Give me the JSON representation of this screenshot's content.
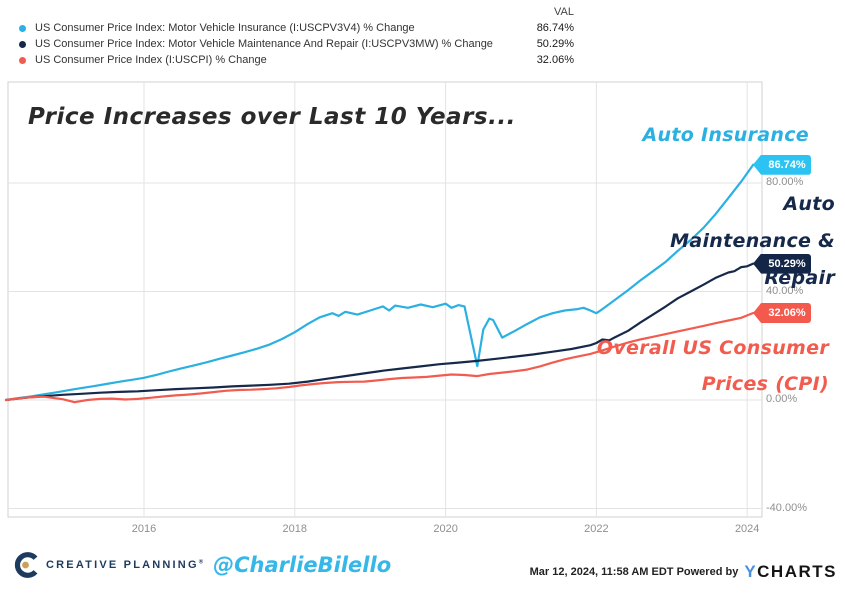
{
  "legend": {
    "val_header": "VAL",
    "rows": [
      {
        "label": "US Consumer Price Index: Motor Vehicle Insurance (I:USCPV3V4) % Change",
        "value": "86.74%",
        "color": "#2bb0e2"
      },
      {
        "label": "US Consumer Price Index: Motor Vehicle Maintenance And Repair (I:USCPV3MW) % Change",
        "value": "50.29%",
        "color": "#16294a"
      },
      {
        "label": "US Consumer Price Index (I:USCPI) % Change",
        "value": "32.06%",
        "color": "#f25c4f"
      }
    ]
  },
  "title": "Price Increases over Last 10 Years...",
  "annotations": {
    "insurance": {
      "text": "Auto Insurance",
      "color": "#2bb0e2"
    },
    "maintenance": {
      "lines": [
        "Auto",
        "Maintenance &",
        "Repair"
      ],
      "color": "#16294a"
    },
    "cpi": {
      "lines": [
        "Overall US Consumer",
        "Prices (CPI)"
      ],
      "color": "#f25c4f"
    }
  },
  "footer": {
    "brand": "CREATIVE PLANNING",
    "brand_reg": "®",
    "handle": "@CharlieBilello",
    "timestamp": "Mar 12, 2024, 11:58 AM EDT",
    "powered_by": " Powered by",
    "ycharts_y": "Y",
    "ycharts_rest": "CHARTS"
  },
  "chart_data": {
    "type": "line",
    "title": "Price Increases over Last 10 Years...",
    "x_axis": {
      "ticks": [
        {
          "label": "2016",
          "value": 2016
        },
        {
          "label": "2018",
          "value": 2018
        },
        {
          "label": "2020",
          "value": 2020
        },
        {
          "label": "2022",
          "value": 2022
        },
        {
          "label": "2024",
          "value": 2024
        }
      ],
      "range": [
        2014.17,
        2024.2
      ]
    },
    "y_axis": {
      "unit": "%",
      "ticks": [
        {
          "label": "80.00%",
          "value": 80
        },
        {
          "label": "40.00%",
          "value": 40
        },
        {
          "label": "0.00%",
          "value": 0
        },
        {
          "label": "-40.00%",
          "value": -40
        }
      ],
      "range": [
        -41.5,
        117.5
      ]
    },
    "grid": true,
    "legend_position": "top-left",
    "series": [
      {
        "name": "US Consumer Price Index: Motor Vehicle Insurance (I:USCPV3V4) % Change",
        "short_name": "Auto Insurance",
        "final_value_label": "86.74%",
        "color": "#2bb0e2",
        "badge_color": "#2cc2f1",
        "points": [
          [
            2014.17,
            0
          ],
          [
            2014.33,
            0.7
          ],
          [
            2014.5,
            1.3
          ],
          [
            2014.67,
            2.1
          ],
          [
            2014.83,
            2.8
          ],
          [
            2015.0,
            3.6
          ],
          [
            2015.17,
            4.4
          ],
          [
            2015.33,
            5.1
          ],
          [
            2015.5,
            5.9
          ],
          [
            2015.67,
            6.7
          ],
          [
            2015.83,
            7.4
          ],
          [
            2016.0,
            8.2
          ],
          [
            2016.17,
            9.3
          ],
          [
            2016.33,
            10.5
          ],
          [
            2016.5,
            11.7
          ],
          [
            2016.67,
            12.8
          ],
          [
            2016.83,
            13.9
          ],
          [
            2017.0,
            15.2
          ],
          [
            2017.17,
            16.4
          ],
          [
            2017.33,
            17.6
          ],
          [
            2017.5,
            18.9
          ],
          [
            2017.67,
            20.5
          ],
          [
            2017.83,
            22.5
          ],
          [
            2018.0,
            25.0
          ],
          [
            2018.17,
            28.0
          ],
          [
            2018.33,
            30.5
          ],
          [
            2018.5,
            32.0
          ],
          [
            2018.58,
            31.0
          ],
          [
            2018.67,
            32.5
          ],
          [
            2018.83,
            31.5
          ],
          [
            2019.0,
            33.0
          ],
          [
            2019.17,
            34.5
          ],
          [
            2019.25,
            33.0
          ],
          [
            2019.33,
            34.8
          ],
          [
            2019.5,
            34.0
          ],
          [
            2019.67,
            35.2
          ],
          [
            2019.83,
            34.2
          ],
          [
            2020.0,
            35.5
          ],
          [
            2020.08,
            34.0
          ],
          [
            2020.17,
            35.0
          ],
          [
            2020.25,
            34.5
          ],
          [
            2020.42,
            12.5
          ],
          [
            2020.5,
            26.0
          ],
          [
            2020.58,
            30.0
          ],
          [
            2020.63,
            29.5
          ],
          [
            2020.75,
            23.0
          ],
          [
            2020.92,
            25.5
          ],
          [
            2021.08,
            28.0
          ],
          [
            2021.25,
            30.5
          ],
          [
            2021.42,
            32.0
          ],
          [
            2021.58,
            33.0
          ],
          [
            2021.75,
            33.5
          ],
          [
            2021.83,
            34.0
          ],
          [
            2021.92,
            33.0
          ],
          [
            2022.0,
            32.0
          ],
          [
            2022.08,
            33.5
          ],
          [
            2022.25,
            37.0
          ],
          [
            2022.42,
            40.5
          ],
          [
            2022.58,
            44.0
          ],
          [
            2022.75,
            47.5
          ],
          [
            2022.92,
            51.0
          ],
          [
            2023.08,
            55.0
          ],
          [
            2023.25,
            59.0
          ],
          [
            2023.42,
            63.5
          ],
          [
            2023.58,
            68.5
          ],
          [
            2023.75,
            74.5
          ],
          [
            2023.92,
            80.5
          ],
          [
            2024.08,
            86.74
          ]
        ]
      },
      {
        "name": "US Consumer Price Index: Motor Vehicle Maintenance And Repair (I:USCPV3MW) % Change",
        "short_name": "Auto Maintenance & Repair",
        "final_value_label": "50.29%",
        "color": "#16294a",
        "badge_color": "#132647",
        "points": [
          [
            2014.17,
            0
          ],
          [
            2014.42,
            0.8
          ],
          [
            2014.67,
            1.4
          ],
          [
            2014.92,
            1.9
          ],
          [
            2015.17,
            2.3
          ],
          [
            2015.42,
            2.7
          ],
          [
            2015.67,
            3.0
          ],
          [
            2015.92,
            3.2
          ],
          [
            2016.17,
            3.6
          ],
          [
            2016.42,
            4.0
          ],
          [
            2016.67,
            4.3
          ],
          [
            2016.92,
            4.6
          ],
          [
            2017.17,
            5.0
          ],
          [
            2017.42,
            5.3
          ],
          [
            2017.67,
            5.6
          ],
          [
            2017.92,
            6.0
          ],
          [
            2018.17,
            6.8
          ],
          [
            2018.42,
            7.8
          ],
          [
            2018.67,
            8.8
          ],
          [
            2018.92,
            9.8
          ],
          [
            2019.17,
            10.8
          ],
          [
            2019.42,
            11.6
          ],
          [
            2019.67,
            12.4
          ],
          [
            2019.92,
            13.2
          ],
          [
            2020.17,
            13.8
          ],
          [
            2020.42,
            14.4
          ],
          [
            2020.67,
            15.2
          ],
          [
            2020.92,
            16.0
          ],
          [
            2021.17,
            16.8
          ],
          [
            2021.42,
            17.8
          ],
          [
            2021.67,
            18.8
          ],
          [
            2021.92,
            20.2
          ],
          [
            2022.0,
            21.0
          ],
          [
            2022.08,
            22.3
          ],
          [
            2022.17,
            22.0
          ],
          [
            2022.25,
            23.2
          ],
          [
            2022.42,
            25.5
          ],
          [
            2022.58,
            28.5
          ],
          [
            2022.75,
            31.5
          ],
          [
            2022.92,
            34.5
          ],
          [
            2023.08,
            37.5
          ],
          [
            2023.25,
            40.0
          ],
          [
            2023.42,
            42.5
          ],
          [
            2023.58,
            45.0
          ],
          [
            2023.75,
            47.0
          ],
          [
            2023.83,
            47.5
          ],
          [
            2023.92,
            49.0
          ],
          [
            2024.0,
            49.3
          ],
          [
            2024.08,
            50.29
          ]
        ]
      },
      {
        "name": "US Consumer Price Index (I:USCPI) % Change",
        "short_name": "Overall US Consumer Prices (CPI)",
        "final_value_label": "32.06%",
        "color": "#f25c4f",
        "badge_color": "#f4594e",
        "points": [
          [
            2014.17,
            0
          ],
          [
            2014.42,
            0.9
          ],
          [
            2014.67,
            1.2
          ],
          [
            2014.92,
            0.3
          ],
          [
            2015.08,
            -0.8
          ],
          [
            2015.25,
            0.0
          ],
          [
            2015.42,
            0.4
          ],
          [
            2015.58,
            0.5
          ],
          [
            2015.75,
            0.2
          ],
          [
            2015.92,
            0.4
          ],
          [
            2016.08,
            0.8
          ],
          [
            2016.25,
            1.3
          ],
          [
            2016.42,
            1.7
          ],
          [
            2016.58,
            2.0
          ],
          [
            2016.75,
            2.4
          ],
          [
            2016.92,
            2.9
          ],
          [
            2017.08,
            3.4
          ],
          [
            2017.25,
            3.7
          ],
          [
            2017.42,
            3.8
          ],
          [
            2017.58,
            4.0
          ],
          [
            2017.75,
            4.3
          ],
          [
            2017.92,
            4.8
          ],
          [
            2018.08,
            5.4
          ],
          [
            2018.25,
            5.9
          ],
          [
            2018.42,
            6.3
          ],
          [
            2018.58,
            6.6
          ],
          [
            2018.75,
            6.7
          ],
          [
            2018.92,
            6.8
          ],
          [
            2019.08,
            7.2
          ],
          [
            2019.25,
            7.7
          ],
          [
            2019.42,
            8.1
          ],
          [
            2019.58,
            8.3
          ],
          [
            2019.75,
            8.5
          ],
          [
            2019.92,
            9.0
          ],
          [
            2020.08,
            9.4
          ],
          [
            2020.25,
            9.2
          ],
          [
            2020.42,
            8.8
          ],
          [
            2020.58,
            9.6
          ],
          [
            2020.75,
            10.1
          ],
          [
            2020.92,
            10.6
          ],
          [
            2021.08,
            11.2
          ],
          [
            2021.25,
            12.4
          ],
          [
            2021.42,
            13.8
          ],
          [
            2021.58,
            15.0
          ],
          [
            2021.75,
            16.0
          ],
          [
            2021.92,
            17.0
          ],
          [
            2022.08,
            18.3
          ],
          [
            2022.25,
            19.8
          ],
          [
            2022.42,
            21.2
          ],
          [
            2022.58,
            22.3
          ],
          [
            2022.75,
            23.3
          ],
          [
            2022.92,
            24.3
          ],
          [
            2023.08,
            25.3
          ],
          [
            2023.25,
            26.3
          ],
          [
            2023.42,
            27.3
          ],
          [
            2023.58,
            28.3
          ],
          [
            2023.75,
            29.3
          ],
          [
            2023.92,
            30.3
          ],
          [
            2024.0,
            31.2
          ],
          [
            2024.08,
            32.06
          ]
        ]
      }
    ]
  }
}
